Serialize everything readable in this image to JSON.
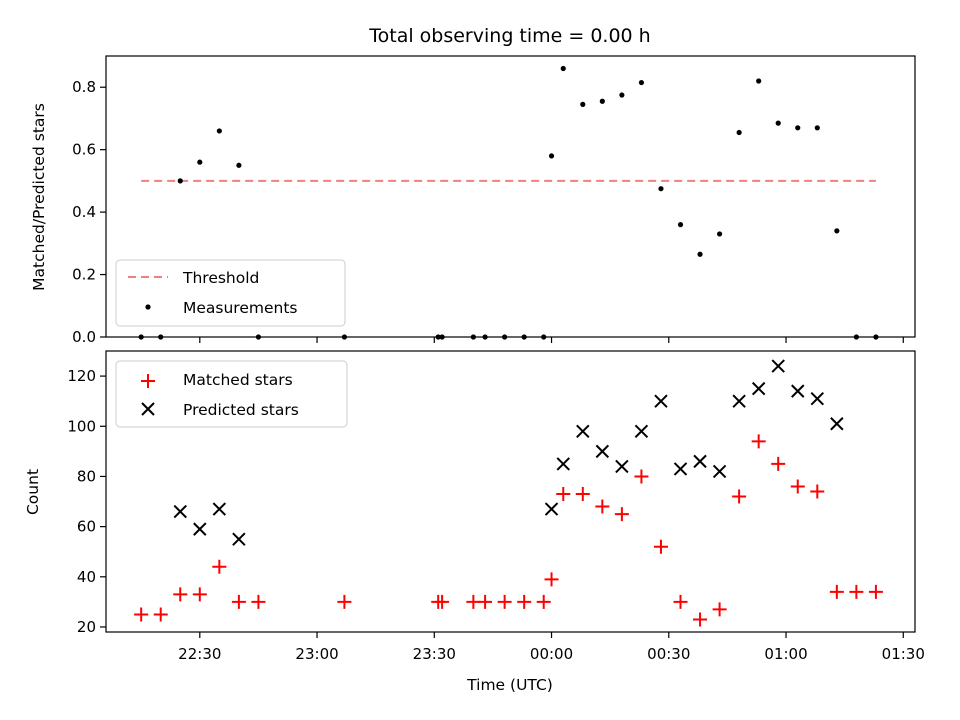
{
  "chart_data": [
    {
      "panel": "top",
      "type": "scatter",
      "title": "Total observing time = 0.00 h",
      "xlabel": "",
      "ylabel": "Matched/Predicted stars",
      "xlim": [
        "22:06",
        "01:33"
      ],
      "ylim": [
        0,
        0.9
      ],
      "yticks": [
        0.0,
        0.2,
        0.4,
        0.6,
        0.8
      ],
      "yticklabels": [
        "0.0",
        "0.2",
        "0.4",
        "0.6",
        "0.8"
      ],
      "grid": false,
      "legend_position": "lower-left",
      "threshold": {
        "name": "Threshold",
        "color": "#f08080",
        "y": 0.5,
        "x_start": "22:15",
        "x_end": "01:23"
      },
      "series": [
        {
          "name": "Measurements",
          "color": "#000000",
          "marker": "dot",
          "x": [
            "22:15",
            "22:20",
            "22:25",
            "22:30",
            "22:35",
            "22:40",
            "22:45",
            "23:07",
            "23:31",
            "23:32",
            "23:40",
            "23:43",
            "23:48",
            "23:53",
            "23:58",
            "00:00",
            "00:03",
            "00:08",
            "00:13",
            "00:18",
            "00:23",
            "00:28",
            "00:33",
            "00:38",
            "00:43",
            "00:48",
            "00:53",
            "00:58",
            "01:03",
            "01:08",
            "01:13",
            "01:18",
            "01:23"
          ],
          "y": [
            0,
            0,
            0.5,
            0.56,
            0.66,
            0.55,
            0,
            0,
            0,
            0,
            0,
            0,
            0,
            0,
            0,
            0.58,
            0.86,
            0.745,
            0.755,
            0.775,
            0.815,
            0.475,
            0.36,
            0.265,
            0.33,
            0.655,
            0.82,
            0.685,
            0.67,
            0.67,
            0.34,
            0,
            0
          ]
        }
      ]
    },
    {
      "panel": "bottom",
      "type": "scatter",
      "title": "",
      "xlabel": "Time (UTC)",
      "ylabel": "Count",
      "xlim": [
        "22:06",
        "01:33"
      ],
      "ylim": [
        18,
        130
      ],
      "xticks": [
        "22:30",
        "23:00",
        "23:30",
        "00:00",
        "00:30",
        "01:00",
        "01:30"
      ],
      "yticks": [
        20,
        40,
        60,
        80,
        100,
        120
      ],
      "grid": false,
      "legend_position": "upper-left",
      "series": [
        {
          "name": "Matched stars",
          "color": "#ff0000",
          "marker": "plus",
          "x": [
            "22:15",
            "22:20",
            "22:25",
            "22:30",
            "22:35",
            "22:40",
            "22:45",
            "23:07",
            "23:31",
            "23:32",
            "23:40",
            "23:43",
            "23:48",
            "23:53",
            "23:58",
            "00:00",
            "00:03",
            "00:08",
            "00:13",
            "00:18",
            "00:23",
            "00:28",
            "00:33",
            "00:38",
            "00:43",
            "00:48",
            "00:53",
            "00:58",
            "01:03",
            "01:08",
            "01:13",
            "01:18",
            "01:23"
          ],
          "y": [
            25,
            25,
            33,
            33,
            44,
            30,
            30,
            30,
            30,
            30,
            30,
            30,
            30,
            30,
            30,
            39,
            73,
            73,
            68,
            65,
            80,
            52,
            30,
            23,
            27,
            72,
            94,
            85,
            76,
            74,
            34,
            34,
            34
          ]
        },
        {
          "name": "Predicted stars",
          "color": "#000000",
          "marker": "x",
          "x": [
            "22:25",
            "22:30",
            "22:35",
            "22:40",
            "00:00",
            "00:03",
            "00:08",
            "00:13",
            "00:18",
            "00:23",
            "00:28",
            "00:33",
            "00:38",
            "00:43",
            "00:48",
            "00:53",
            "00:58",
            "01:03",
            "01:08",
            "01:13"
          ],
          "y": [
            66,
            59,
            67,
            55,
            67,
            85,
            98,
            90,
            84,
            98,
            110,
            83,
            86,
            82,
            110,
            115,
            124,
            114,
            111,
            101
          ]
        }
      ]
    }
  ]
}
